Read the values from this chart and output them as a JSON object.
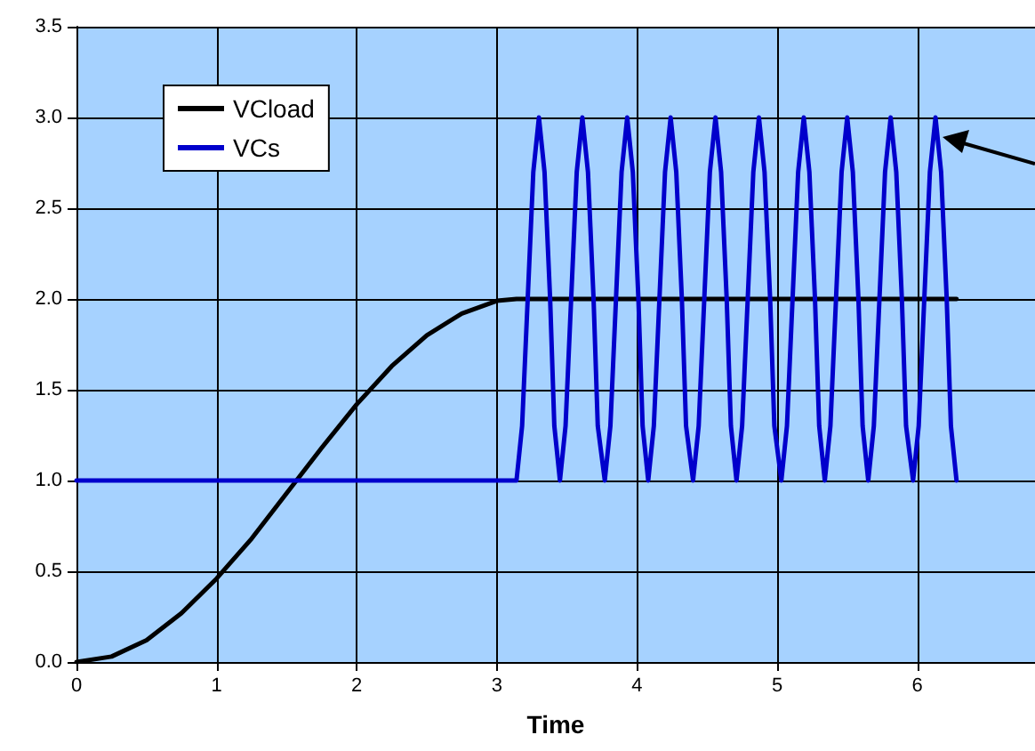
{
  "chart_data": {
    "type": "line",
    "xlabel": "Time",
    "xlim": [
      0,
      6.84
    ],
    "xticks": [
      0,
      1,
      2,
      3,
      4,
      5,
      6
    ],
    "ylim": [
      0,
      3.5
    ],
    "yticks": [
      {
        "value": 0,
        "label": "0.0"
      },
      {
        "value": 0.5,
        "label": "0.5"
      },
      {
        "value": 1,
        "label": "1.0"
      },
      {
        "value": 1.5,
        "label": "1.5"
      },
      {
        "value": 2,
        "label": "2.0"
      },
      {
        "value": 2.5,
        "label": "2.5"
      },
      {
        "value": 3,
        "label": "3.0"
      },
      {
        "value": 3.5,
        "label": "3.5"
      }
    ],
    "grid": true,
    "legend": "top left",
    "marker": "none",
    "line_style": "solid",
    "series": [
      {
        "name": "VCload",
        "color": "#000000",
        "x": [
          0,
          0.25,
          0.5,
          0.75,
          1,
          1.25,
          1.5,
          1.75,
          2,
          2.25,
          2.5,
          2.75,
          3,
          3.14,
          6.28
        ],
        "values": [
          0,
          0.03,
          0.12,
          0.27,
          0.46,
          0.68,
          0.93,
          1.18,
          1.42,
          1.63,
          1.8,
          1.92,
          1.99,
          2,
          2
        ]
      },
      {
        "name": "VCs",
        "color": "#0000cc",
        "x": [
          0,
          3.14,
          3.18,
          3.22,
          3.26,
          3.3,
          3.34,
          3.38,
          3.41,
          3.45,
          3.49,
          3.53,
          3.57,
          3.61,
          3.65,
          3.69,
          3.72,
          3.77,
          3.81,
          3.85,
          3.89,
          3.93,
          3.97,
          4.01,
          4.04,
          4.08,
          4.12,
          4.16,
          4.2,
          4.24,
          4.28,
          4.32,
          4.35,
          4.4,
          4.44,
          4.48,
          4.52,
          4.56,
          4.6,
          4.64,
          4.67,
          4.71,
          4.75,
          4.79,
          4.83,
          4.87,
          4.91,
          4.95,
          4.98,
          5.03,
          5.07,
          5.11,
          5.15,
          5.19,
          5.23,
          5.27,
          5.3,
          5.34,
          5.38,
          5.42,
          5.46,
          5.5,
          5.54,
          5.58,
          5.61,
          5.65,
          5.69,
          5.73,
          5.77,
          5.81,
          5.85,
          5.89,
          5.92,
          5.97,
          6.01,
          6.05,
          6.09,
          6.13,
          6.17,
          6.21,
          6.24,
          6.28
        ],
        "values": [
          1,
          1,
          1.3,
          2,
          2.7,
          3,
          2.7,
          2,
          1.3,
          1,
          1.3,
          2,
          2.7,
          3,
          2.7,
          2,
          1.3,
          1,
          1.3,
          2,
          2.7,
          3,
          2.7,
          2,
          1.3,
          1,
          1.3,
          2,
          2.7,
          3,
          2.7,
          2,
          1.3,
          1,
          1.3,
          2,
          2.7,
          3,
          2.7,
          2,
          1.3,
          1,
          1.3,
          2,
          2.7,
          3,
          2.7,
          2,
          1.3,
          1,
          1.3,
          2,
          2.7,
          3,
          2.7,
          2,
          1.3,
          1,
          1.3,
          2,
          2.7,
          3,
          2.7,
          2,
          1.3,
          1,
          1.3,
          2,
          2.7,
          3,
          2.7,
          2,
          1.3,
          1,
          1.3,
          2,
          2.7,
          3,
          2.7,
          2,
          1.3,
          1
        ]
      }
    ]
  }
}
